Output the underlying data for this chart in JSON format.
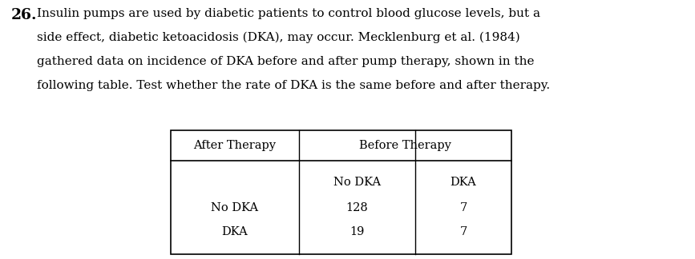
{
  "title_number": "26.",
  "paragraph_lines": [
    "Insulin pumps are used by diabetic patients to control blood glucose levels, but a",
    "side effect, diabetic ketoacidosis (DKA), may occur. Mecklenburg et al. (1984)",
    "gathered data on incidence of DKA before and after pump therapy, shown in the",
    "following table. Test whether the rate of DKA is the same before and after therapy."
  ],
  "table": {
    "col_header_top": [
      "After Therapy",
      "Before Therapy"
    ],
    "col_header_sub": [
      "No DKA",
      "DKA"
    ],
    "rows": [
      [
        "No DKA",
        "128",
        "7"
      ],
      [
        "DKA",
        "19",
        "7"
      ]
    ]
  },
  "background_color": "#ffffff",
  "text_color": "#000000",
  "font_size_paragraph": 11.0,
  "font_size_number": 13.5,
  "font_size_table": 10.5,
  "fig_width": 8.67,
  "fig_height": 3.24,
  "dpi": 100
}
